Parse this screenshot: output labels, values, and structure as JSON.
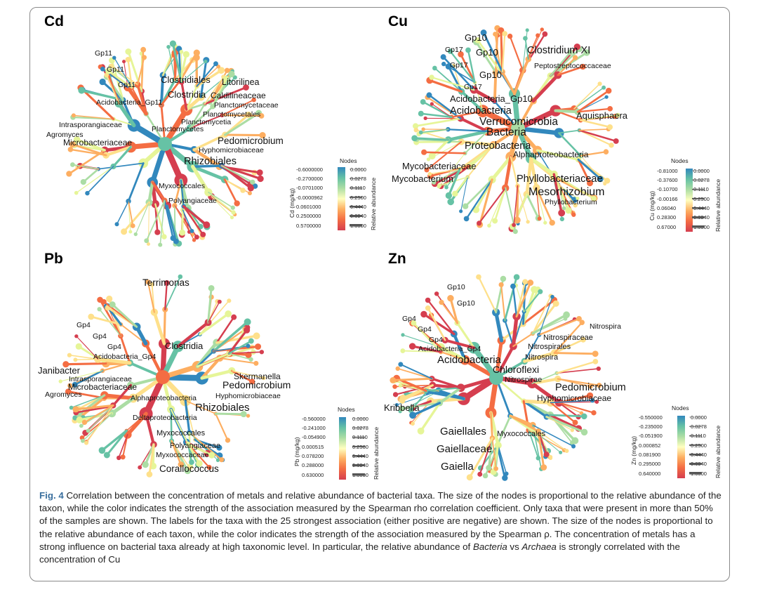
{
  "figure": {
    "label": "Fig. 4",
    "caption_part1": "Correlation between the concentration of metals and relative abundance of bacterial taxa. The size of the nodes is proportional to the relative abundance of the taxon, while the color indicates the strength of the association measured by the Spearman rho correlation coefficient. Only taxa that were present in more than 50% of the samples are shown. The labels for the taxa with the 25 strongest association (either positive are negative) are shown. The size of the nodes is proportional to the relative abundance of each taxon, while the color indicates the strength of the association measured by the Spearman ρ. The concentration of metals has a strong influence on bacterial taxa already at high taxonomic level. In particular, the relative abundance of ",
    "caption_italic1": "Bacteria",
    "caption_mid": " vs ",
    "caption_italic2": "Archaea",
    "caption_part2": " is strongly correlated with the concentration of Cu"
  },
  "colors": {
    "scale": [
      "#d53e4f",
      "#f46d43",
      "#fdae61",
      "#fee08b",
      "#e6f598",
      "#abdda4",
      "#66c2a5",
      "#3288bd"
    ],
    "frame": "#8a8a8a",
    "caption_label": "#3a6f9e"
  },
  "panels": [
    {
      "title": "Cd",
      "legend": {
        "nodes_label": "Nodes",
        "color_values": [
          "-0.6000000",
          "-0.2700000",
          "-0.0701000",
          "-0.0000962",
          "0.0601000",
          "0.2500000",
          "0.5700000"
        ],
        "size_values": [
          "0.0000",
          "0.0278",
          "0.1110",
          "0.2500",
          "0.4440",
          "0.6940",
          "1.0000"
        ],
        "color_axis": "Cd (mg/kg)",
        "size_axis": "Relative abundance"
      },
      "labels": [
        "Gp11",
        "Gp11",
        "Gp11",
        "Clostridiales",
        "Litorilinea",
        "Caldilineaceae",
        "Clostridia",
        "Acidobacteria_Gp11",
        "Planctomycetaceae",
        "Planctomycetales",
        "Planctomycetia",
        "Intrasporangiaceae",
        "Planctomycetes",
        "Agromyces",
        "Microbacteriaceae",
        "Pedomicrobium",
        "Hyphomicrobiaceae",
        "Rhizobiales",
        "Myxococcales",
        "Polyangiaceae"
      ]
    },
    {
      "title": "Cu",
      "legend": {
        "nodes_label": "Nodes",
        "color_values": [
          "-0.81000",
          "-0.37600",
          "-0.10700",
          "-0.00166",
          "0.06040",
          "0.28300",
          "0.67000"
        ],
        "size_values": [
          "0.0000",
          "0.0278",
          "0.1110",
          "0.2500",
          "0.4440",
          "0.6940",
          "1.0000"
        ],
        "color_axis": "Cu (mg/kg)",
        "size_axis": "Relative abundance"
      },
      "labels": [
        "Gp10",
        "Gp17",
        "Gp10",
        "Clostridium XI",
        "Gp17",
        "Peptostreptococcaceae",
        "Gp10",
        "Gp17",
        "Acidobacteria_Gp10",
        "Acidobacteria",
        "Verrucomicrobia",
        "Aquisphaera",
        "Bacteria",
        "Proteobacteria",
        "Alphaproteobacteria",
        "Mycobacteriaceae",
        "Mycobacterium",
        "Phyllobacteriaceae",
        "Mesorhizobium",
        "Phyllobacterium"
      ]
    },
    {
      "title": "Pb",
      "legend": {
        "nodes_label": "Nodes",
        "color_values": [
          "-0.560000",
          "-0.241000",
          "-0.054900",
          "0.000515",
          "0.078200",
          "0.288000",
          "0.630000"
        ],
        "size_values": [
          "0.0000",
          "0.0278",
          "0.1110",
          "0.2500",
          "0.4440",
          "0.6940",
          "1.0000"
        ],
        "color_axis": "Pb (mg/kg)",
        "size_axis": "Relative abundance"
      },
      "labels": [
        "Terrimonas",
        "Gp4",
        "Gp4",
        "Gp4",
        "Clostridia",
        "Acidobacteria_Gp4",
        "Janibacter",
        "Skermanella",
        "Intrasporangiaceae",
        "Microbacteriaceae",
        "Pedomicrobium",
        "Agromyces",
        "Alphaproteobacteria",
        "Hyphomicrobiaceae",
        "Rhizobiales",
        "Deltaproteobacteria",
        "Myxococcales",
        "Polyangiaceae",
        "Myxococcaceae",
        "Corallococcus"
      ]
    },
    {
      "title": "Zn",
      "legend": {
        "nodes_label": "Nodes",
        "color_values": [
          "-0.550000",
          "-0.235000",
          "-0.051900",
          "0.000852",
          "0.081900",
          "0.295000",
          "0.640000"
        ],
        "size_values": [
          "0.0000",
          "0.0278",
          "0.1110",
          "0.2500",
          "0.4440",
          "0.6940",
          "1.0000"
        ],
        "color_axis": "Zn (mg/kg)",
        "size_axis": "Relative abundance"
      },
      "labels": [
        "Gp10",
        "Gp10",
        "Gp4",
        "Gp4",
        "Gp4",
        "Nitrospira",
        "Nitrospiraceae",
        "Acidobacteria_Gp4",
        "Nitrospirales",
        "Nitrospira",
        "Acidobacteria",
        "Chloroflexi",
        "Nitrospirae",
        "Pedomicrobium",
        "Hyphomicrobiaceae",
        "Kribbella",
        "Gaiellales",
        "Myxococcales",
        "Gaiellaceae",
        "Gaiella"
      ]
    }
  ]
}
